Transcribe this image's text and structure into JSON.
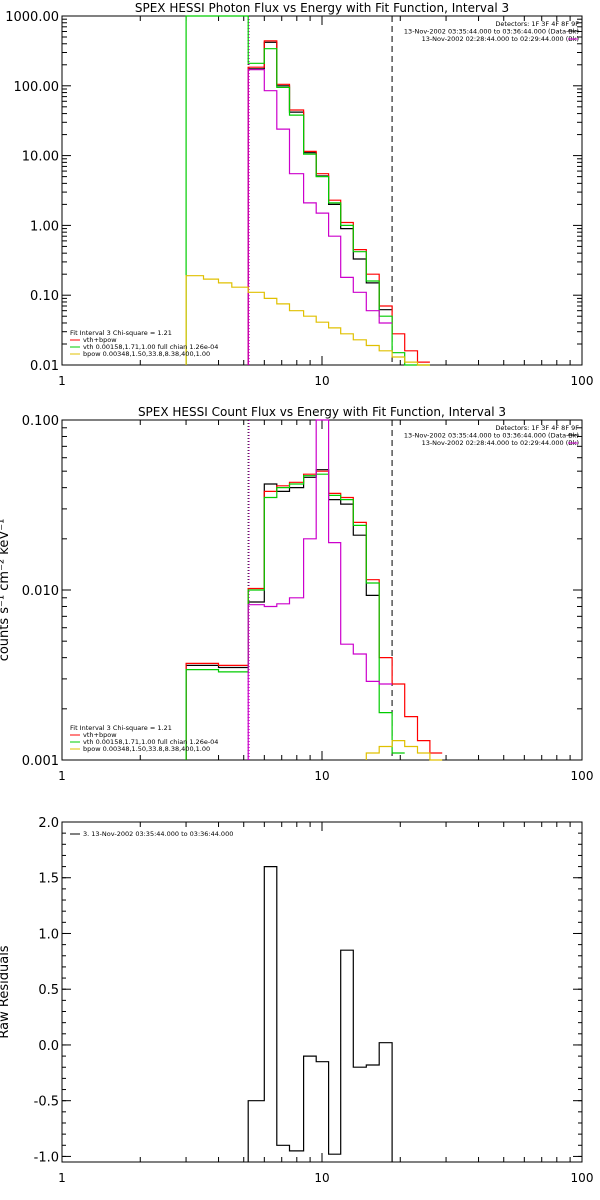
{
  "colors": {
    "data": "#000000",
    "fit_total": "#ff0000",
    "vth": "#00cc00",
    "bpow": "#e0c000",
    "background": "#cc00cc"
  },
  "chart_data": [
    {
      "type": "line",
      "title": "SPEX HESSI Photon Flux vs Energy with Fit Function, Interval 3",
      "xlabel": "",
      "ylabel": "",
      "xscale": "log",
      "yscale": "log",
      "xlim": [
        1,
        100
      ],
      "ylim": [
        0.01,
        1000
      ],
      "x_ticks": [
        "1",
        "10",
        "100"
      ],
      "y_ticks": [
        "1000.00",
        "100.00",
        "10.00",
        "1.00",
        "0.10",
        "0.01"
      ],
      "header_lines": [
        "Detectors: 1F 3F 4F 8F 9F",
        "13-Nov-2002 03:35:44.000 to 03:36:44.000 (Data-Bk)",
        "13-Nov-2002 02:28:44.000 to 02:29:44.000 (Bk)"
      ],
      "legend_title": "Fit Interval 3   Chi-square = 1.21",
      "legend": [
        {
          "color": "#ff0000",
          "label": "vth+bpow"
        },
        {
          "color": "#00cc00",
          "label": "vth 0.00158,1.71,1.00  full chian 1.26e-04"
        },
        {
          "color": "#e0c000",
          "label": "bpow 0.00348,1.50,33.8,8.38,400,1.00"
        }
      ],
      "vlines": [
        {
          "x": 5.2,
          "style": "dotted",
          "color": "#000000"
        },
        {
          "x": 5.2,
          "style": "dotted",
          "color": "#cc00cc"
        },
        {
          "x": 18.6,
          "style": "dashed",
          "color": "#000000"
        }
      ],
      "edges": [
        3,
        3.5,
        4,
        4.5,
        5.2,
        6,
        6.7,
        7.5,
        8.5,
        9.5,
        10.6,
        11.8,
        13.2,
        14.8,
        16.6,
        18.6,
        20.8,
        23.3,
        26
      ],
      "series": [
        {
          "key": "data",
          "color": "#000000",
          "values": [
            null,
            null,
            null,
            null,
            175,
            420,
            100,
            42,
            11,
            5.1,
            2,
            0.9,
            0.33,
            0.15,
            0.062,
            null,
            null,
            null
          ]
        },
        {
          "key": "fit_total",
          "color": "#ff0000",
          "values": [
            null,
            null,
            null,
            null,
            185,
            440,
            105,
            45,
            11.5,
            5.5,
            2.3,
            1.1,
            0.45,
            0.2,
            0.07,
            0.028,
            0.016,
            0.011
          ]
        },
        {
          "key": "vth",
          "color": "#00cc00",
          "values": [
            1000,
            1000,
            1000,
            1000,
            210,
            340,
            95,
            38,
            10.5,
            5,
            2.1,
            1,
            0.42,
            0.16,
            0.05,
            0.015,
            0.01,
            0.01
          ]
        },
        {
          "key": "background",
          "color": "#cc00cc",
          "values": [
            null,
            null,
            null,
            null,
            170,
            85,
            24,
            5.5,
            2.1,
            1.5,
            0.7,
            0.18,
            0.11,
            0.06,
            0.04,
            null,
            null,
            null
          ]
        },
        {
          "key": "bpow",
          "color": "#e0c000",
          "values": [
            0.19,
            0.17,
            0.15,
            0.13,
            0.11,
            0.09,
            0.075,
            0.06,
            0.05,
            0.041,
            0.034,
            0.028,
            0.023,
            0.019,
            0.016,
            0.013,
            0.011,
            0.01
          ]
        }
      ]
    },
    {
      "type": "line",
      "title": "SPEX HESSI Count Flux vs Energy with Fit Function, Interval 3",
      "xlabel": "",
      "ylabel": "counts s⁻¹ cm⁻² keV⁻¹",
      "xscale": "log",
      "yscale": "log",
      "xlim": [
        1,
        100
      ],
      "ylim": [
        0.001,
        0.1
      ],
      "x_ticks": [
        "1",
        "10",
        "100"
      ],
      "y_ticks": [
        "0.100",
        "0.010",
        "0.001"
      ],
      "header_lines": [
        "Detectors: 1F 3F 4F 8F 9F",
        "13-Nov-2002 03:35:44.000 to 03:36:44.000 (Data-Bk)",
        "13-Nov-2002 02:28:44.000 to 02:29:44.000 (Bk)"
      ],
      "legend_title": "Fit Interval 3   Chi-square = 1.21",
      "legend": [
        {
          "color": "#ff0000",
          "label": "vth+bpow"
        },
        {
          "color": "#00cc00",
          "label": "vth 0.00158,1.71,1.00  full chian 1.26e-04"
        },
        {
          "color": "#e0c000",
          "label": "bpow 0.00348,1.50,33.8,8.38,400,1.00"
        }
      ],
      "vlines": [
        {
          "x": 5.2,
          "style": "dotted",
          "color": "#000000"
        },
        {
          "x": 5.2,
          "style": "dotted",
          "color": "#cc00cc"
        },
        {
          "x": 18.6,
          "style": "dashed",
          "color": "#000000"
        }
      ],
      "edges": [
        3,
        4,
        5.2,
        6,
        6.7,
        7.5,
        8.5,
        9.5,
        10.6,
        11.8,
        13.2,
        14.8,
        16.6,
        18.6,
        20.8,
        23.3,
        26,
        29
      ],
      "series": [
        {
          "key": "data",
          "color": "#000000",
          "values": [
            0.0036,
            0.0035,
            0.0085,
            0.042,
            0.038,
            0.04,
            0.046,
            0.051,
            0.034,
            0.032,
            0.021,
            0.0093,
            null,
            null,
            null,
            null,
            null
          ]
        },
        {
          "key": "fit_total",
          "color": "#ff0000",
          "values": [
            0.0037,
            0.0036,
            0.0102,
            0.038,
            0.041,
            0.043,
            0.048,
            0.05,
            0.037,
            0.035,
            0.025,
            0.0115,
            0.004,
            0.0028,
            0.0018,
            0.0013,
            0.0011
          ]
        },
        {
          "key": "vth",
          "color": "#00cc00",
          "values": [
            0.0034,
            0.0033,
            0.01,
            0.035,
            0.04,
            0.042,
            0.047,
            0.048,
            0.036,
            0.034,
            0.024,
            0.011,
            0.0019,
            0.0011,
            null,
            null,
            null
          ]
        },
        {
          "key": "background",
          "color": "#cc00cc",
          "values": [
            null,
            null,
            0.0082,
            0.008,
            0.0083,
            0.009,
            0.02,
            0.1,
            0.019,
            0.0048,
            0.0042,
            0.0029,
            0.0028,
            null,
            null,
            null,
            null
          ]
        },
        {
          "key": "bpow",
          "color": "#e0c000",
          "values": [
            null,
            null,
            null,
            null,
            null,
            null,
            null,
            null,
            null,
            null,
            null,
            0.0011,
            0.0012,
            0.0013,
            0.0012,
            0.0011,
            0.001
          ]
        }
      ]
    },
    {
      "type": "line",
      "title": "",
      "xlabel": "",
      "ylabel": "Raw Residuals",
      "xscale": "log",
      "yscale": "linear",
      "xlim": [
        1,
        100
      ],
      "ylim": [
        -1.05,
        2.0
      ],
      "x_ticks": [
        "1",
        "10",
        "100"
      ],
      "y_ticks": [
        "2.0",
        "1.5",
        "1.0",
        "0.5",
        "0.0",
        "-0.5",
        "-1.0"
      ],
      "header_lines": [],
      "legend_title": "",
      "legend": [
        {
          "color": "#000000",
          "label": "3. 13-Nov-2002 03:35:44.000 to 03:36:44.000"
        }
      ],
      "vlines": [],
      "edges": [
        5.2,
        6,
        6.7,
        7.5,
        8.5,
        9.5,
        10.6,
        11.8,
        13.2,
        14.8,
        16.6,
        18.6
      ],
      "series": [
        {
          "key": "residuals",
          "color": "#000000",
          "values": [
            -0.5,
            1.6,
            -0.9,
            -0.95,
            -0.1,
            -0.15,
            -0.98,
            0.85,
            -0.2,
            -0.18,
            0.02
          ]
        }
      ]
    }
  ]
}
